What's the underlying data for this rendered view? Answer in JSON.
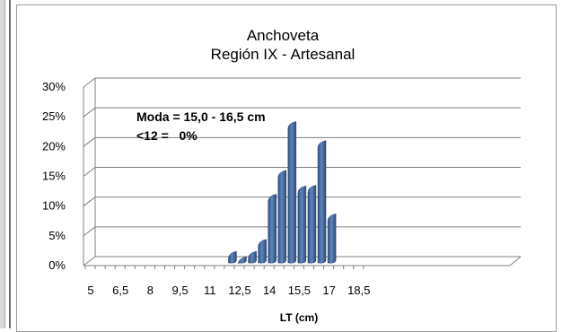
{
  "chart_data": {
    "type": "bar",
    "title": [
      "Anchoveta",
      "Región IX - Artesanal"
    ],
    "xlabel": "LT (cm)",
    "ylabel": "",
    "ylim": [
      0,
      30
    ],
    "yticks": [
      "0%",
      "5%",
      "10%",
      "15%",
      "20%",
      "25%",
      "30%"
    ],
    "xtick_labels": [
      "5",
      "6,5",
      "8",
      "9,5",
      "11",
      "12,5",
      "14",
      "15,5",
      "17",
      "18,5"
    ],
    "x": [
      12,
      12.5,
      13,
      13.5,
      14,
      14.5,
      15,
      15.5,
      16,
      16.5,
      17
    ],
    "values": [
      1.2,
      0.3,
      1.2,
      3.2,
      10.8,
      14.8,
      23.0,
      12.2,
      12.3,
      19.8,
      7.5
    ],
    "annotations": [
      "Moda = 15,0 - 16,5 cm",
      "<12 =   0%"
    ],
    "bar_color": "#4a6fa5",
    "grid": true,
    "legend": "none"
  }
}
